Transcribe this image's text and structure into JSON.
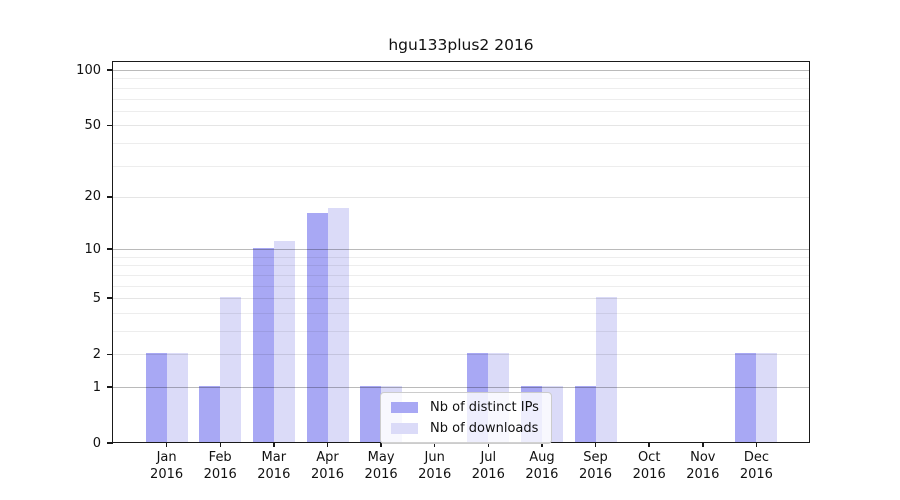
{
  "title": "hgu133plus2 2016",
  "chart_data": {
    "type": "bar",
    "title": "hgu133plus2 2016",
    "scale": "log1p",
    "categories": [
      "Jan",
      "Feb",
      "Mar",
      "Apr",
      "May",
      "Jun",
      "Jul",
      "Aug",
      "Sep",
      "Oct",
      "Nov",
      "Dec"
    ],
    "year": "2016",
    "series": [
      {
        "name": "Nb of distinct IPs",
        "color": "#a8a8f4",
        "values": [
          2,
          1,
          10,
          16,
          1,
          0,
          2,
          1,
          1,
          0,
          0,
          2
        ]
      },
      {
        "name": "Nb of downloads",
        "color": "#dbdbf8",
        "values": [
          2,
          5,
          11,
          17,
          1,
          0,
          2,
          1,
          5,
          0,
          0,
          2
        ]
      }
    ],
    "y_ticks": [
      0,
      1,
      2,
      5,
      10,
      20,
      50,
      100
    ],
    "ylim": [
      0,
      100
    ],
    "grid": true,
    "legend_position": "inside lower-center"
  }
}
